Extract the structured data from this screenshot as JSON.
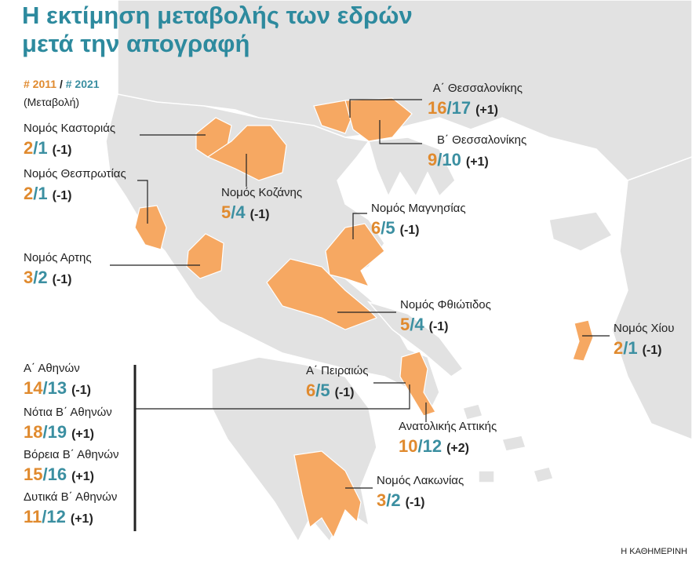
{
  "title_lines": [
    "Η εκτίμηση μεταβολής των εδρών",
    "μετά την απογραφή"
  ],
  "legend": {
    "first": "# 2011",
    "separator": "/",
    "second": "# 2021",
    "note": "(Μεταβολή)"
  },
  "regions": [
    {
      "name": "Νομός Καστοριάς",
      "seats_2011": 2,
      "seats_2021": 1,
      "change": "(-1)"
    },
    {
      "name": "Νομός Θεσπρωτίας",
      "seats_2011": 2,
      "seats_2021": 1,
      "change": "(-1)"
    },
    {
      "name": "Νομός Κοζάνης",
      "seats_2011": 5,
      "seats_2021": 4,
      "change": "(-1)"
    },
    {
      "name": "Νομός Αρτης",
      "seats_2011": 3,
      "seats_2021": 2,
      "change": "(-1)"
    },
    {
      "name": "Α΄ Θεσσαλονίκης",
      "seats_2011": 16,
      "seats_2021": 17,
      "change": "(+1)"
    },
    {
      "name": "Β΄ Θεσσαλονίκης",
      "seats_2011": 9,
      "seats_2021": 10,
      "change": "(+1)"
    },
    {
      "name": "Νομός Μαγνησίας",
      "seats_2011": 6,
      "seats_2021": 5,
      "change": "(-1)"
    },
    {
      "name": "Νομός Φθιώτιδος",
      "seats_2011": 5,
      "seats_2021": 4,
      "change": "(-1)"
    },
    {
      "name": "Νομός Χίου",
      "seats_2011": 2,
      "seats_2021": 1,
      "change": "(-1)"
    },
    {
      "name": "Α΄ Πειραιώς",
      "seats_2011": 6,
      "seats_2021": 5,
      "change": "(-1)"
    },
    {
      "name": "Ανατολικής Αττικής",
      "seats_2011": 10,
      "seats_2021": 12,
      "change": "(+2)"
    },
    {
      "name": "Νομός Λακωνίας",
      "seats_2011": 3,
      "seats_2021": 2,
      "change": "(-1)"
    },
    {
      "name": "Α΄ Αθηνών",
      "seats_2011": 14,
      "seats_2021": 13,
      "change": "(-1)"
    },
    {
      "name": "Νότια Β΄ Αθηνών",
      "seats_2011": 18,
      "seats_2021": 19,
      "change": "(+1)"
    },
    {
      "name": "Βόρεια Β΄ Αθηνών",
      "seats_2011": 15,
      "seats_2021": 16,
      "change": "(+1)"
    },
    {
      "name": "Δυτικά Β΄ Αθηνών",
      "seats_2011": 11,
      "seats_2021": 12,
      "change": "(+1)"
    }
  ],
  "source": "Η ΚΑΘΗΜΕΡΙΝΗ"
}
